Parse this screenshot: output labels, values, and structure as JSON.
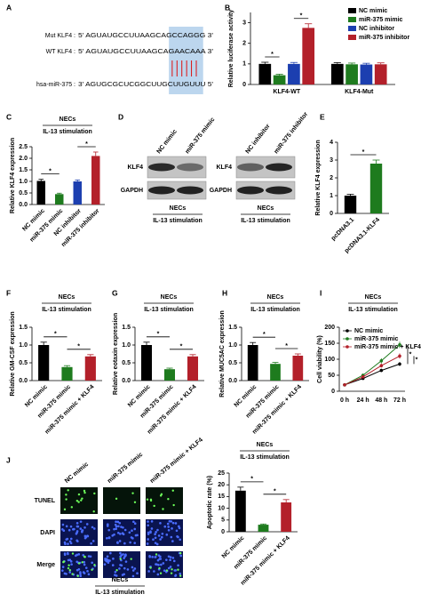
{
  "panels": {
    "A": {
      "letter": "A",
      "lines": [
        {
          "label": "Mut KLF4 :",
          "seq": "5' AGUAUGCCUUAAGCAGCCAGGG 3'"
        },
        {
          "label": "WT KLF4 :",
          "seq": "5' AGUAUGCCUUAAGCAGAACAAA 3'"
        },
        {
          "label": "hsa-miR-375 :",
          "seq": "3' AGUGCGCUCGGCUUGCUUGUUU 5'"
        }
      ]
    },
    "D": {
      "letter": "D",
      "left": {
        "lanes": [
          "NC mimic",
          "miR-375 mimic"
        ],
        "rows": [
          "KLF4",
          "GAPDH"
        ],
        "footer": [
          "NECs",
          "IL-13 stimulation"
        ]
      },
      "right": {
        "lanes": [
          "NC inhibitor",
          "miR-375 inhibitor"
        ],
        "rows": [
          "KLF4",
          "GAPDH"
        ],
        "footer": [
          "NECs",
          "IL-13 stimulation"
        ]
      }
    },
    "J": {
      "letter": "J",
      "columns": [
        "NC mimic",
        "miR-375 mimic",
        "miR-375 mimic + KLF4"
      ],
      "rows": [
        "TUNEL",
        "DAPI",
        "Merge"
      ],
      "footer": [
        "NECs",
        "IL-13 stimulation"
      ]
    }
  },
  "chart_data": [
    {
      "panel": "B",
      "type": "bar",
      "ylabel": "Relative luciferase activity",
      "categories": [
        "KLF4-WT",
        "KLF4-Mut"
      ],
      "series": [
        {
          "name": "NC mimic",
          "color": "#000000",
          "values": [
            1.0,
            1.0
          ],
          "errors": [
            0.08,
            0.06
          ]
        },
        {
          "name": "miR-375 mimic",
          "color": "#1e7b1e",
          "values": [
            0.45,
            0.98
          ],
          "errors": [
            0.05,
            0.06
          ]
        },
        {
          "name": "NC inhibitor",
          "color": "#1c3fb0",
          "values": [
            1.0,
            0.97
          ],
          "errors": [
            0.07,
            0.06
          ]
        },
        {
          "name": "miR-375 inhibitor",
          "color": "#b3202a",
          "values": [
            2.75,
            0.98
          ],
          "errors": [
            0.2,
            0.07
          ]
        }
      ],
      "ylim": [
        0,
        3.5
      ],
      "yticks": [
        0,
        1,
        2,
        3
      ],
      "stars": [
        "*",
        "*"
      ]
    },
    {
      "panel": "C",
      "type": "bar",
      "header": [
        "NECs",
        "IL-13 stimulation"
      ],
      "ylabel": "Relative KLF4 expression",
      "categories": [
        "NC mimic",
        "miR-375 mimic",
        "NC inhibitor",
        "miR-375 inhibitor"
      ],
      "values": [
        1.02,
        0.45,
        1.0,
        2.1
      ],
      "errors": [
        0.07,
        0.04,
        0.06,
        0.17
      ],
      "colors": [
        "#000000",
        "#1e7b1e",
        "#1c3fb0",
        "#b3202a"
      ],
      "ylim": [
        0,
        2.5
      ],
      "yticks": [
        {
          "value": 0,
          "label": "0.0"
        },
        0.5,
        {
          "value": 1,
          "label": "1.0"
        },
        1.5,
        {
          "value": 2,
          "label": "2.0"
        },
        2.5
      ],
      "stars": [
        "*",
        "*"
      ]
    },
    {
      "panel": "E",
      "type": "bar",
      "ylabel": "Relative KLF4 expression",
      "categories": [
        "pcDNA3.1",
        "pcDNA3.1-KLF4"
      ],
      "values": [
        1.0,
        2.8
      ],
      "errors": [
        0.08,
        0.2
      ],
      "colors": [
        "#000000",
        "#1e7b1e"
      ],
      "ylim": [
        0,
        4
      ],
      "yticks": [
        0,
        1,
        2,
        3,
        4
      ],
      "stars": [
        "*"
      ]
    },
    {
      "panel": "F",
      "type": "bar",
      "header": [
        "NECs",
        "IL-13 stimulation"
      ],
      "ylabel": "Relative GM-CSF expression",
      "categories": [
        "NC mimic",
        "miR-375 mimic",
        "miR-375 mimic + KLF4"
      ],
      "values": [
        1.0,
        0.38,
        0.68
      ],
      "errors": [
        0.08,
        0.04,
        0.05
      ],
      "colors": [
        "#000000",
        "#1e7b1e",
        "#b3202a"
      ],
      "ylim": [
        0,
        1.5
      ],
      "yticks": [
        {
          "value": 0,
          "label": "0.0"
        },
        0.5,
        {
          "value": 1,
          "label": "1.0"
        },
        1.5
      ],
      "stars": [
        "*",
        "*"
      ]
    },
    {
      "panel": "G",
      "type": "bar",
      "header": [
        "NECs",
        "IL-13 stimulation"
      ],
      "ylabel": "Relative eotaxin expression",
      "categories": [
        "NC mimic",
        "miR-375 mimic",
        "miR-375 mimic + KLF4"
      ],
      "values": [
        1.0,
        0.32,
        0.68
      ],
      "errors": [
        0.08,
        0.03,
        0.05
      ],
      "colors": [
        "#000000",
        "#1e7b1e",
        "#b3202a"
      ],
      "ylim": [
        0,
        1.5
      ],
      "yticks": [
        {
          "value": 0,
          "label": "0.0"
        },
        0.5,
        {
          "value": 1,
          "label": "1.0"
        },
        1.5
      ],
      "stars": [
        "*",
        "*"
      ]
    },
    {
      "panel": "H",
      "type": "bar",
      "header": [
        "NECs",
        "IL-13 stimulation"
      ],
      "ylabel": "Relative MUC5AC expression",
      "categories": [
        "NC mimic",
        "miR-375 mimic",
        "miR-375 mimic + KLF4"
      ],
      "values": [
        1.0,
        0.47,
        0.7
      ],
      "errors": [
        0.07,
        0.04,
        0.05
      ],
      "colors": [
        "#000000",
        "#1e7b1e",
        "#b3202a"
      ],
      "ylim": [
        0,
        1.5
      ],
      "yticks": [
        {
          "value": 0,
          "label": "0.0"
        },
        0.5,
        {
          "value": 1,
          "label": "1.0"
        },
        1.5
      ],
      "stars": [
        "*",
        "*"
      ]
    },
    {
      "panel": "I",
      "type": "line",
      "header": [
        "NECs",
        "IL-13 stimulation"
      ],
      "ylabel": "Cell viability (%)",
      "categories": [
        "0 h",
        "24 h",
        "48 h",
        "72 h"
      ],
      "series": [
        {
          "name": "NC mimic",
          "color": "#000000",
          "values": [
            20,
            40,
            65,
            85
          ],
          "errors": [
            2,
            4,
            5,
            6
          ]
        },
        {
          "name": "miR-375 mimic",
          "color": "#1e7b1e",
          "values": [
            20,
            50,
            95,
            145
          ],
          "errors": [
            2,
            5,
            8,
            10
          ]
        },
        {
          "name": "miR-375 mimic + KLF4",
          "color": "#b3202a",
          "values": [
            20,
            45,
            80,
            110
          ],
          "errors": [
            2,
            4,
            6,
            8
          ]
        }
      ],
      "ylim": [
        0,
        200
      ],
      "yticks": [
        0,
        50,
        100,
        150,
        200
      ],
      "stars": [
        "*",
        "*"
      ]
    },
    {
      "type": "bar",
      "header": [
        "NECs",
        "IL-13 stimulation"
      ],
      "ylabel": "Apoptotic rate (%)",
      "categories": [
        "NC mimic",
        "miR-375 mimic",
        "miR-375 mimic + KLF4"
      ],
      "values": [
        17.5,
        3,
        12.5
      ],
      "errors": [
        1.5,
        0.3,
        1.2
      ],
      "colors": [
        "#000000",
        "#1e7b1e",
        "#b3202a"
      ],
      "ylim": [
        0,
        25
      ],
      "yticks": [
        0,
        5,
        10,
        15,
        20,
        25
      ],
      "stars": [
        "*",
        "*"
      ]
    }
  ]
}
